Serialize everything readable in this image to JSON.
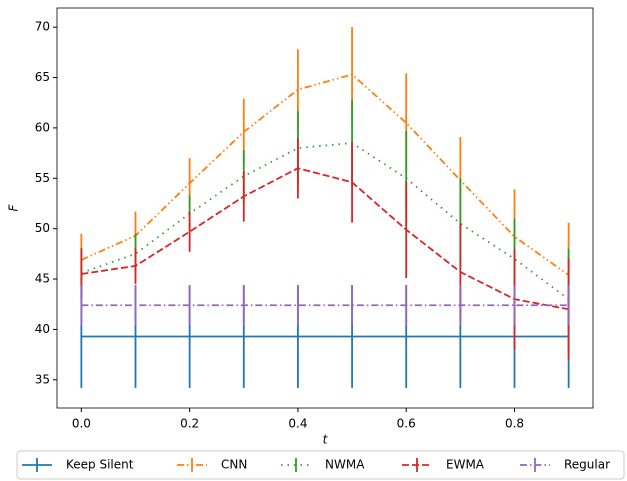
{
  "chart_data": {
    "type": "errorbar_line",
    "xlabel": "t",
    "ylabel": "F",
    "x": [
      0,
      0.1,
      0.2,
      0.3,
      0.4,
      0.5,
      0.6,
      0.7,
      0.8,
      0.9
    ],
    "xlim": [
      -0.045,
      0.945
    ],
    "ylim": [
      32.2,
      71.9
    ],
    "xticks": [
      {
        "value": 0,
        "label": "0.0"
      },
      0.2,
      0.4,
      0.6,
      0.8
    ],
    "yticks": [
      35,
      40,
      45,
      50,
      55,
      60,
      65,
      70
    ],
    "legend": "below",
    "series": [
      {
        "name": "Keep Silent",
        "color": "#1f77b4",
        "linestyle": "solid",
        "values": [
          39.3,
          39.3,
          39.3,
          39.3,
          39.3,
          39.3,
          39.3,
          39.3,
          39.3,
          39.3
        ],
        "errors": [
          5.1,
          5.1,
          5.1,
          5.1,
          5.1,
          5.1,
          5.1,
          5.1,
          5.1,
          5.1
        ]
      },
      {
        "name": "CNN",
        "color": "#ff7f0e",
        "linestyle": "dashdotdot",
        "values": [
          46.9,
          49.3,
          54.5,
          59.6,
          63.8,
          65.3,
          60.5,
          54.8,
          49.2,
          45.4
        ],
        "errors": [
          2.6,
          2.4,
          2.5,
          3.3,
          4.0,
          4.7,
          4.9,
          4.3,
          4.7,
          5.2
        ]
      },
      {
        "name": "NWMA",
        "color": "#2ca02c",
        "linestyle": "dotted",
        "values": [
          45.6,
          47.5,
          51.5,
          55.2,
          58.0,
          58.5,
          55.0,
          50.5,
          47.0,
          43.0
        ],
        "errors": [
          2.5,
          2.0,
          1.8,
          2.6,
          3.7,
          4.3,
          4.7,
          4.5,
          4.0,
          5.0
        ]
      },
      {
        "name": "EWMA",
        "color": "#d62728",
        "linestyle": "dashed",
        "values": [
          45.5,
          46.3,
          49.7,
          53.2,
          56.0,
          54.6,
          49.9,
          45.7,
          43.0,
          42.0
        ],
        "errors": [
          2.5,
          1.8,
          2.0,
          2.5,
          3.0,
          4.0,
          4.8,
          4.8,
          5.0,
          5.0
        ]
      },
      {
        "name": "Regular",
        "color": "#9467bd",
        "linestyle": "dashdot",
        "values": [
          42.4,
          42.4,
          42.4,
          42.4,
          42.4,
          42.4,
          42.4,
          42.4,
          42.4,
          42.4
        ],
        "errors": [
          2.0,
          2.0,
          2.0,
          2.0,
          2.0,
          2.0,
          2.0,
          2.0,
          2.0,
          2.0
        ]
      }
    ]
  }
}
